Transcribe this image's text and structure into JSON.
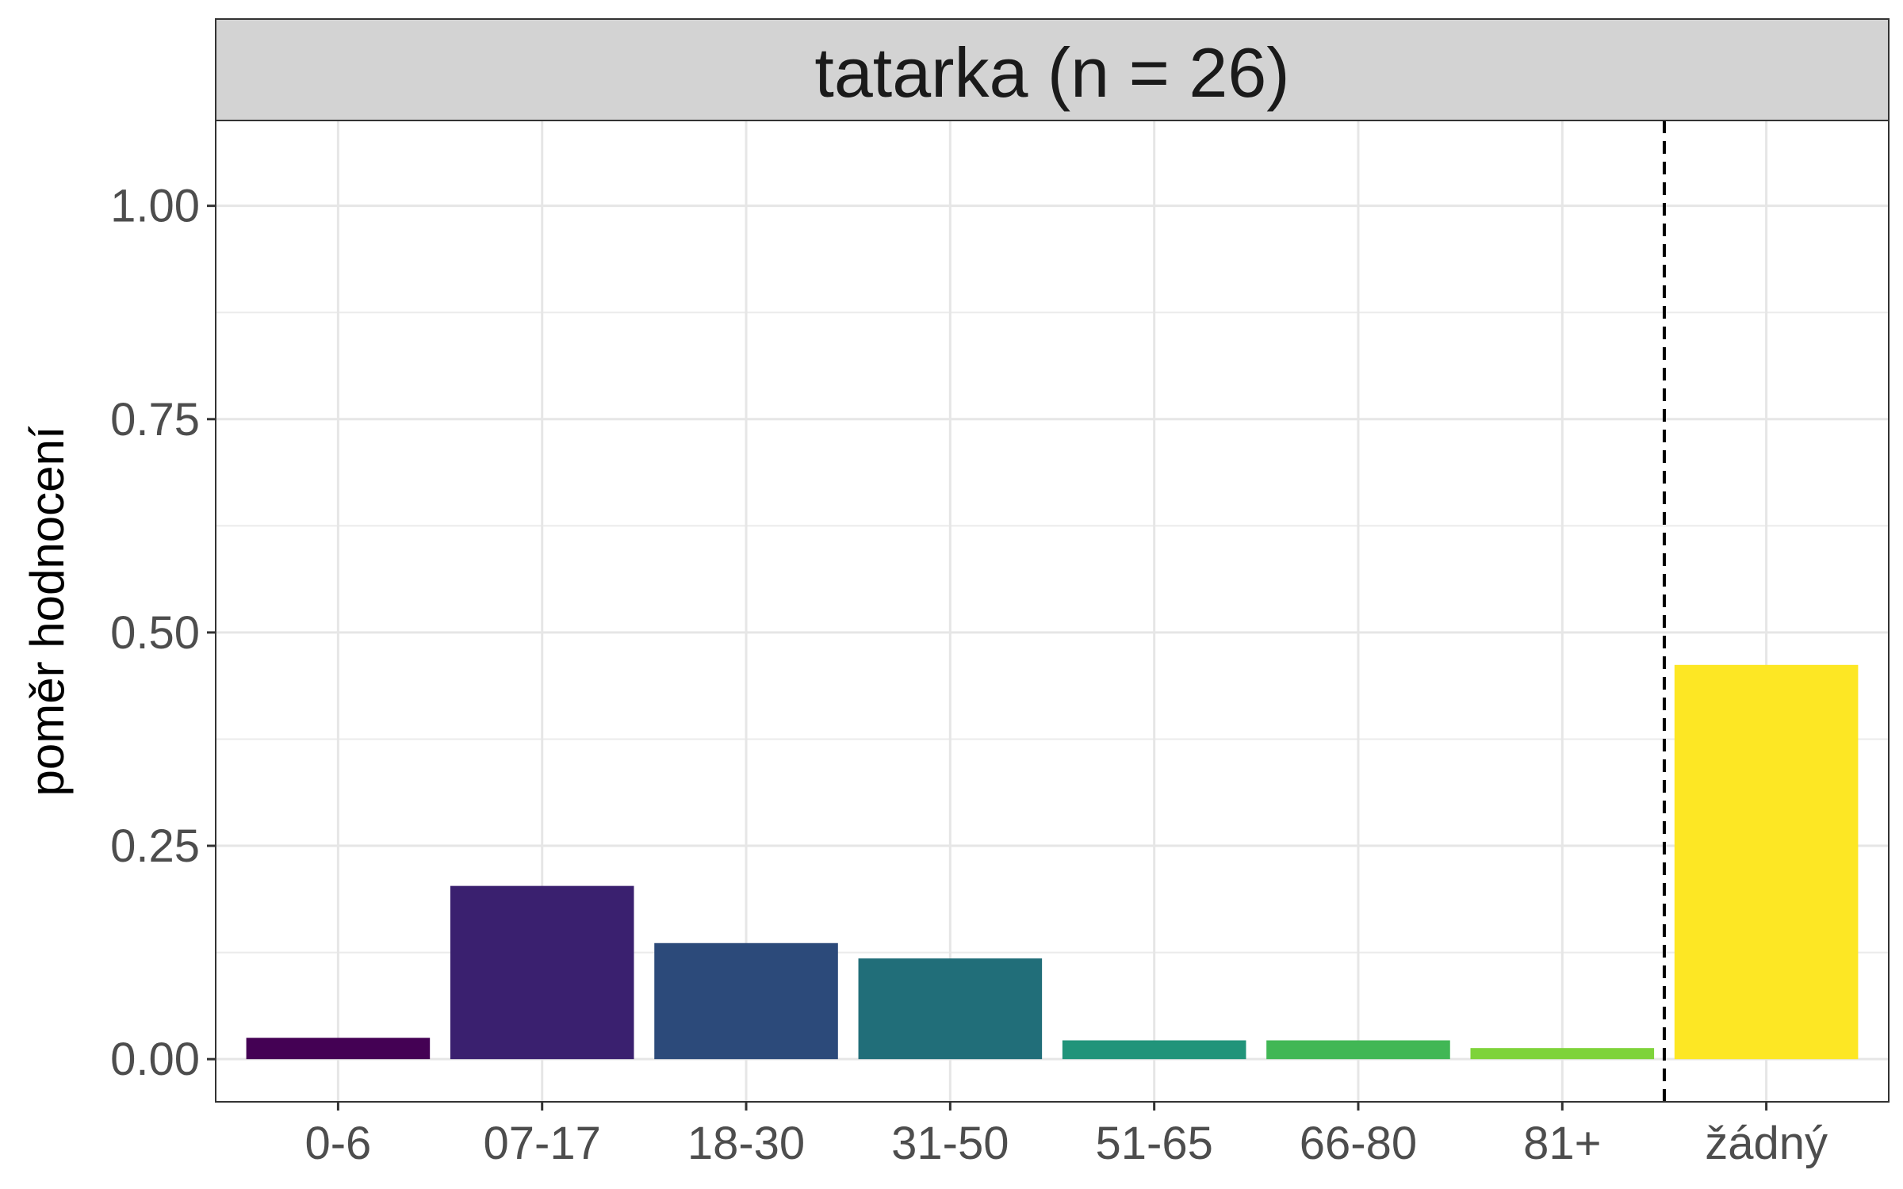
{
  "chart_data": {
    "type": "bar",
    "facet_title": "tatarka (n = 26)",
    "ylabel": "poměr hodnocení",
    "xlabel": "",
    "categories": [
      "0-6",
      "07-17",
      "18-30",
      "31-50",
      "51-65",
      "66-80",
      "81+",
      "žádný"
    ],
    "values": [
      0.025,
      0.203,
      0.136,
      0.118,
      0.022,
      0.022,
      0.013,
      0.462
    ],
    "colors": [
      "#440154",
      "#3a206f",
      "#2c4a7a",
      "#216e79",
      "#21947a",
      "#41b755",
      "#7ed33a",
      "#fde724"
    ],
    "ylim": [
      -0.05,
      1.1
    ],
    "yticks": [
      0.0,
      0.25,
      0.5,
      0.75,
      1.0
    ],
    "ytick_labels": [
      "0.00",
      "0.25",
      "0.50",
      "0.75",
      "1.00"
    ],
    "reference_line": {
      "between": [
        "81+",
        "žádný"
      ],
      "style": "dashed"
    },
    "grid": true
  }
}
